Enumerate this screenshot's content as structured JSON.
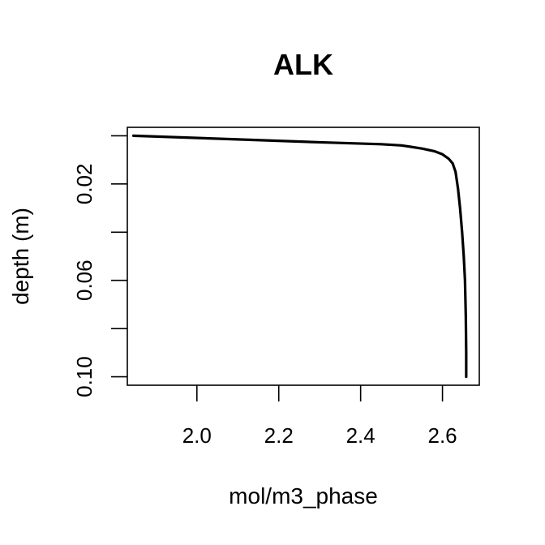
{
  "chart_data": {
    "type": "line",
    "title": "ALK",
    "xlabel": "mol/m3_phase",
    "ylabel": "depth (m)",
    "xlim": [
      1.83,
      2.69
    ],
    "ylim": [
      -0.0035,
      0.1035
    ],
    "y_reversed": true,
    "x_ticks": [
      2.0,
      2.2,
      2.4,
      2.6
    ],
    "x_tick_labels": [
      "2.0",
      "2.2",
      "2.4",
      "2.6"
    ],
    "y_ticks": [
      0.0,
      0.02,
      0.04,
      0.06,
      0.08,
      0.1
    ],
    "y_tick_labels": [
      "",
      "0.02",
      "",
      "0.06",
      "",
      "0.10"
    ],
    "grid": false,
    "series": [
      {
        "color": "#000000",
        "x": [
          1.845,
          2.1,
          2.3,
          2.45,
          2.5,
          2.55,
          2.58,
          2.6,
          2.615,
          2.625,
          2.632,
          2.638,
          2.643,
          2.648,
          2.652,
          2.655,
          2.657,
          2.658,
          2.658
        ],
        "y": [
          0.0,
          0.0015,
          0.0027,
          0.0035,
          0.004,
          0.0053,
          0.0064,
          0.0077,
          0.0095,
          0.0115,
          0.015,
          0.022,
          0.03,
          0.04,
          0.05,
          0.06,
          0.075,
          0.09,
          0.1
        ]
      }
    ]
  }
}
